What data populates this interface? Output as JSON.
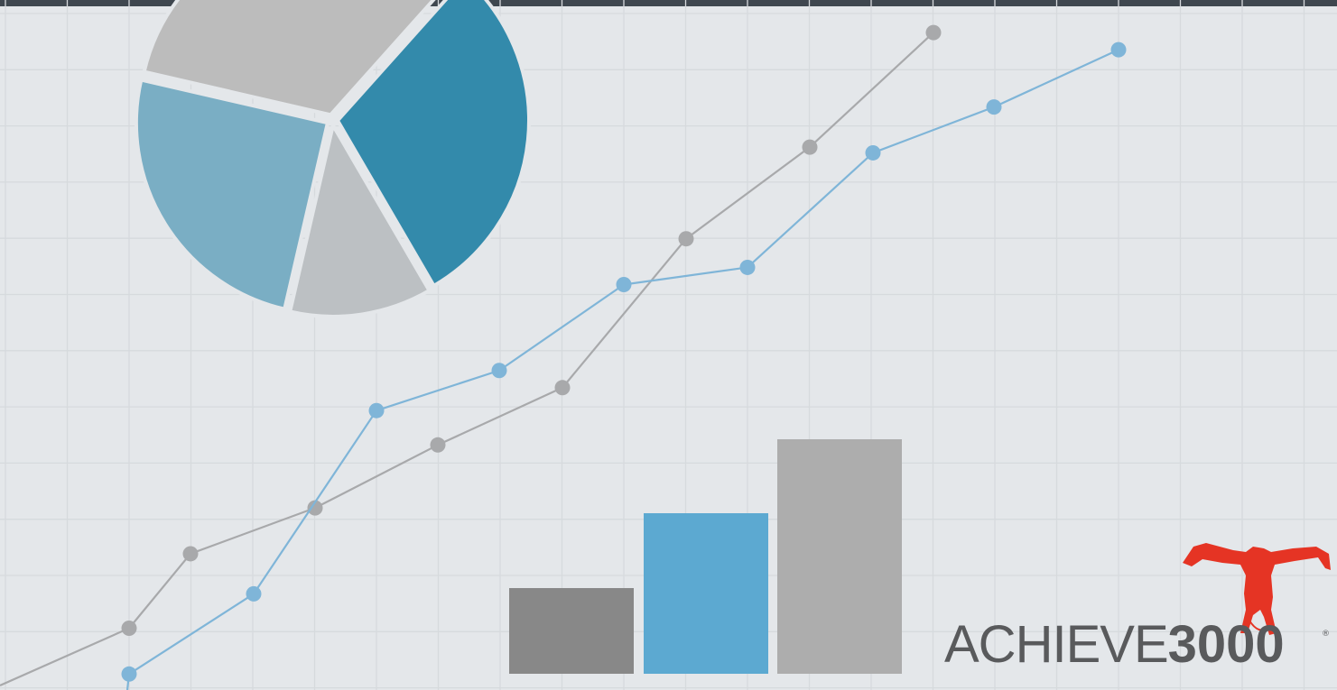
{
  "palette": {
    "background": "#e4e7ea",
    "gridline": "#d6dadd",
    "top_bar": "#3f474f",
    "blue_line": "#7fb5d8",
    "gray_line": "#a8a9ab",
    "pie_slices": [
      "#bcbcbc",
      "#338aab",
      "#bcc0c3",
      "#7aaec4"
    ],
    "bars": [
      "#888888",
      "#5ca9d1",
      "#adadad"
    ],
    "logo_text": "#595a5c",
    "mascot": "#e53424"
  },
  "chart_data": [
    {
      "type": "pie",
      "values": [
        33,
        30,
        12,
        25
      ],
      "colors": [
        "#bcbcbc",
        "#338aab",
        "#bcc0c3",
        "#7aaec4"
      ]
    },
    {
      "type": "line",
      "series": [
        {
          "color": "#a8a9ab",
          "values": [
            1,
            2.3,
            3.1,
            4.2,
            5.2,
            7.8,
            9.4,
            11.4
          ]
        },
        {
          "color": "#7fb5d8",
          "values": [
            0.2,
            1.6,
            4.8,
            5.5,
            7,
            7.3,
            9.3,
            10.1,
            11.1
          ]
        }
      ]
    },
    {
      "type": "bar",
      "values": [
        95,
        178,
        260
      ],
      "colors": [
        "#888888",
        "#5ca9d1",
        "#adadad"
      ]
    }
  ],
  "logo": {
    "light_text": "ACHIEVE",
    "bold_text": "3000",
    "registered_mark": "®",
    "icon": "cartwheel-figure-icon"
  }
}
